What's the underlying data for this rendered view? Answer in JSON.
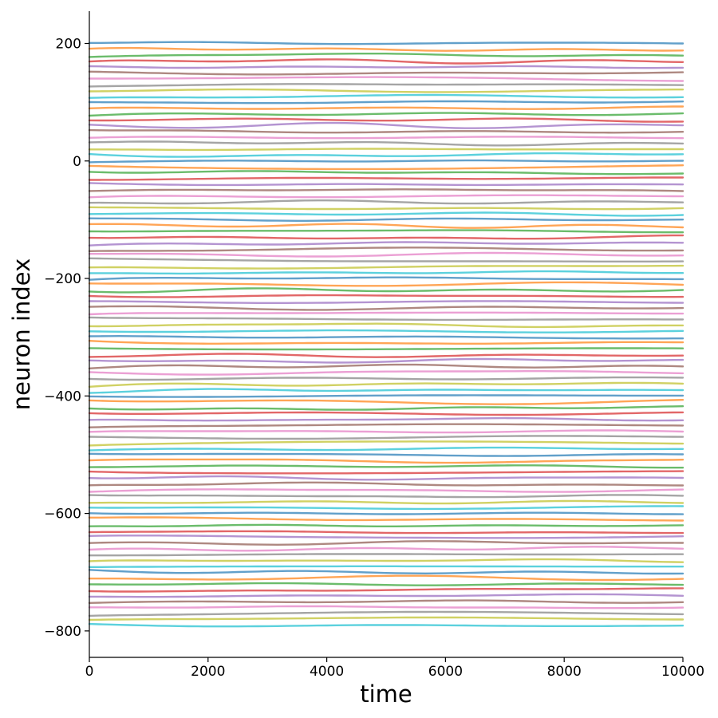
{
  "chart_data": {
    "type": "line",
    "title": "",
    "xlabel": "time",
    "ylabel": "neuron index",
    "xlim": [
      0,
      10000
    ],
    "ylim": [
      -845,
      255
    ],
    "x_ticks": [
      0,
      2000,
      4000,
      6000,
      8000,
      10000
    ],
    "x_tick_labels": [
      "0",
      "2000",
      "4000",
      "6000",
      "8000",
      "10000"
    ],
    "y_ticks": [
      200,
      0,
      -200,
      -400,
      -600,
      -800
    ],
    "y_tick_labels": [
      "200",
      "0",
      "−200",
      "−400",
      "−600",
      "−800"
    ],
    "grid": false,
    "legend": "none",
    "spines": "left and bottom only",
    "n_traces": 100,
    "trace_spacing": 10,
    "trace_offsets": "trace k is centered on neuron index 200 - 10*k, for k = 0 .. 99 (200 down to -790)",
    "trace_amplitude": "small slow fluctuations of about ±3 units around each offset",
    "colors": [
      "#1f77b4",
      "#ff7f0e",
      "#2ca02c",
      "#d62728",
      "#9467bd",
      "#8c564b",
      "#e377c2",
      "#7f7f7f",
      "#bcbd22",
      "#17becf"
    ]
  }
}
